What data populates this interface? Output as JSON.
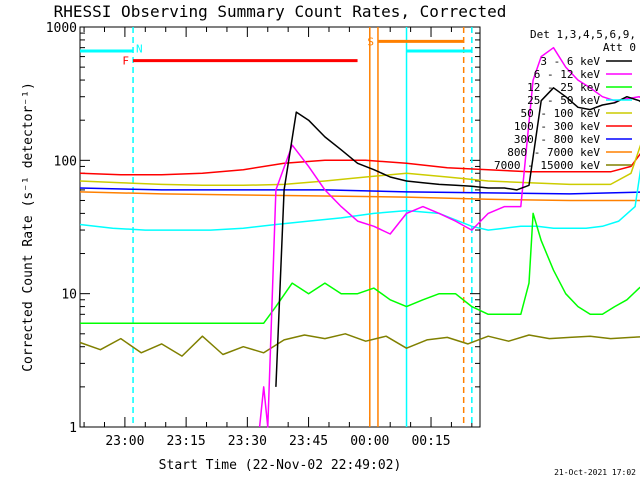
{
  "chart_data": {
    "type": "line",
    "title": "RHESSI Observing Summary Count Rates, Corrected",
    "ylabel": "Corrected Count Rate (s⁻¹ detector⁻¹)",
    "xlabel": "Start Time (22-Nov-02 22:49:02)",
    "y_scale": "log",
    "ylim": [
      1,
      1000
    ],
    "xlim": [
      "22:49",
      "00:27"
    ],
    "y_ticks": [
      "1",
      "10",
      "100",
      "1000"
    ],
    "x_ticks": [
      "23:00",
      "23:15",
      "23:30",
      "23:45",
      "00:00",
      "00:15"
    ],
    "legend_title": [
      "Det 1,3,4,5,6,9,",
      "Att 0"
    ],
    "legend_position": "right",
    "timestamp": "21-Oct-2021 17:02",
    "series": [
      {
        "name": "3 - 6 keV",
        "color": "#000000",
        "x": [
          48,
          50,
          53,
          56,
          60,
          64,
          68,
          72,
          76,
          80,
          84,
          88,
          92,
          96,
          100,
          104,
          107,
          110,
          113,
          116,
          119,
          122,
          125,
          128,
          131,
          134,
          137,
          140
        ],
        "y": [
          2,
          60,
          230,
          200,
          150,
          120,
          95,
          85,
          75,
          70,
          68,
          66,
          65,
          64,
          62,
          62,
          60,
          65,
          280,
          350,
          300,
          250,
          240,
          260,
          270,
          300,
          280,
          240
        ]
      },
      {
        "name": "6 - 12 keV",
        "color": "#ff00ff",
        "x": [
          44,
          45,
          46,
          48,
          52,
          56,
          60,
          64,
          68,
          72,
          76,
          80,
          84,
          88,
          92,
          96,
          100,
          104,
          108,
          111,
          113,
          116,
          119,
          122,
          125,
          128,
          131,
          134,
          137,
          140
        ],
        "y": [
          1,
          2,
          1,
          60,
          130,
          90,
          60,
          45,
          35,
          32,
          28,
          40,
          45,
          40,
          35,
          30,
          40,
          45,
          45,
          400,
          600,
          700,
          500,
          400,
          350,
          300,
          280,
          290,
          300,
          260
        ]
      },
      {
        "name": "12 - 25 keV",
        "color": "#00ff00",
        "x": [
          0,
          5,
          10,
          15,
          20,
          25,
          30,
          35,
          40,
          45,
          48,
          52,
          56,
          60,
          64,
          68,
          72,
          76,
          80,
          84,
          88,
          92,
          96,
          100,
          104,
          108,
          110,
          111,
          113,
          116,
          119,
          122,
          125,
          128,
          131,
          134,
          137,
          140
        ],
        "y": [
          6,
          6,
          6,
          6,
          6,
          6,
          6,
          6,
          6,
          6,
          8,
          12,
          10,
          12,
          10,
          10,
          11,
          9,
          8,
          9,
          10,
          10,
          8,
          7,
          7,
          7,
          12,
          40,
          25,
          15,
          10,
          8,
          7,
          7,
          8,
          9,
          11,
          13
        ]
      },
      {
        "name": "25 - 50 keV",
        "color": "#00ffff",
        "x": [
          0,
          8,
          16,
          24,
          32,
          40,
          48,
          56,
          64,
          72,
          80,
          88,
          96,
          100,
          104,
          108,
          112,
          116,
          120,
          124,
          128,
          132,
          136,
          140
        ],
        "y": [
          33,
          31,
          30,
          30,
          30,
          31,
          33,
          35,
          37,
          40,
          42,
          40,
          32,
          30,
          31,
          32,
          32,
          31,
          31,
          31,
          32,
          35,
          45,
          300
        ]
      },
      {
        "name": "50 - 100 keV",
        "color": "#cccc00",
        "x": [
          0,
          10,
          20,
          30,
          40,
          50,
          60,
          70,
          80,
          90,
          100,
          110,
          120,
          130,
          135,
          138,
          140
        ],
        "y": [
          70,
          68,
          66,
          65,
          65,
          66,
          70,
          75,
          80,
          75,
          70,
          68,
          66,
          66,
          80,
          150,
          300
        ]
      },
      {
        "name": "100 - 300 keV",
        "color": "#ff0000",
        "x": [
          0,
          10,
          20,
          30,
          40,
          50,
          60,
          70,
          80,
          90,
          100,
          110,
          120,
          130,
          135,
          138,
          140
        ],
        "y": [
          80,
          78,
          78,
          80,
          85,
          95,
          100,
          100,
          95,
          88,
          85,
          82,
          82,
          82,
          90,
          120,
          180
        ]
      },
      {
        "name": "300 - 800 keV",
        "color": "#0000ff",
        "x": [
          0,
          20,
          40,
          60,
          80,
          100,
          120,
          140
        ],
        "y": [
          62,
          60,
          60,
          60,
          58,
          57,
          56,
          58
        ]
      },
      {
        "name": "800 - 7000 keV",
        "color": "#ff8000",
        "x": [
          0,
          20,
          40,
          60,
          80,
          100,
          120,
          140
        ],
        "y": [
          58,
          56,
          55,
          54,
          53,
          51,
          50,
          50
        ]
      },
      {
        "name": "7000 - 15000 keV",
        "color": "#808000",
        "x": [
          0,
          5,
          10,
          15,
          20,
          25,
          30,
          35,
          40,
          45,
          50,
          55,
          60,
          65,
          70,
          75,
          80,
          85,
          90,
          95,
          100,
          105,
          110,
          115,
          120,
          125,
          130,
          135,
          140
        ],
        "y": [
          4.3,
          3.8,
          4.6,
          3.6,
          4.2,
          3.4,
          4.8,
          3.5,
          4.0,
          3.6,
          4.5,
          4.9,
          4.6,
          5.0,
          4.4,
          4.8,
          3.9,
          4.5,
          4.7,
          4.2,
          4.8,
          4.4,
          4.9,
          4.6,
          4.7,
          4.8,
          4.6,
          4.7,
          4.8
        ]
      }
    ],
    "flag_bars": [
      {
        "label": "",
        "color": "#00ffff",
        "level": 660,
        "x_start": "22:49",
        "x_end": "23:02"
      },
      {
        "label": "N",
        "color": "#00ffff",
        "dashed_marker_at": "23:02"
      },
      {
        "label": "F",
        "color": "#ff0000",
        "level": 560,
        "x_start": "23:02",
        "x_end": "23:57"
      },
      {
        "label": "S",
        "color": "#ff8000",
        "level": 780,
        "x_start": "00:02",
        "x_end": "00:23"
      },
      {
        "label": "",
        "color": "#00ffff",
        "level": 660,
        "x_start": "00:09",
        "x_end": "00:25"
      }
    ],
    "vertical_markers": [
      {
        "color": "#00ffff",
        "style": "dashed",
        "at": "23:02"
      },
      {
        "color": "#ff8000",
        "style": "solid",
        "at": "00:00"
      },
      {
        "color": "#ff8000",
        "style": "solid",
        "at": "00:02"
      },
      {
        "color": "#00ffff",
        "style": "solid",
        "at": "00:09"
      },
      {
        "color": "#ff8000",
        "style": "dashed",
        "at": "00:23"
      },
      {
        "color": "#00ffff",
        "style": "dashed",
        "at": "00:25"
      }
    ]
  }
}
